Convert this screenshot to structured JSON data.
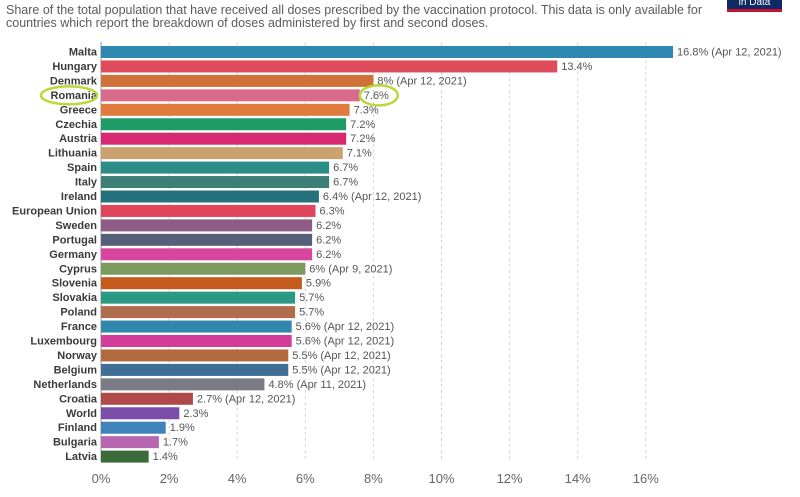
{
  "header": {
    "subtitle": "Share of the total population that have received all doses prescribed by the vaccination protocol. This data is only available for countries which report the breakdown of doses administered by first and second doses.",
    "badge": "in Data"
  },
  "chart_data": {
    "type": "bar",
    "orientation": "horizontal",
    "xlim": [
      0,
      16.8
    ],
    "x_ticks": [
      "0%",
      "2%",
      "4%",
      "6%",
      "8%",
      "10%",
      "12%",
      "14%",
      "16%"
    ],
    "x_tick_values": [
      0,
      2,
      4,
      6,
      8,
      10,
      12,
      14,
      16
    ],
    "grid": "vertical dashed",
    "highlighted": "Romania",
    "highlight_color": "#b9d83a",
    "bars": [
      {
        "category": "Malta",
        "value": 16.8,
        "label": "16.8% (Apr 12, 2021)",
        "color": "#2e88b0"
      },
      {
        "category": "Hungary",
        "value": 13.4,
        "label": "13.4%",
        "color": "#de4c5c"
      },
      {
        "category": "Denmark",
        "value": 8.0,
        "label": "8% (Apr 12, 2021)",
        "color": "#cf7239"
      },
      {
        "category": "Romania",
        "value": 7.6,
        "label": "7.6%",
        "color": "#d86b8c"
      },
      {
        "category": "Greece",
        "value": 7.3,
        "label": "7.3%",
        "color": "#e07a3d"
      },
      {
        "category": "Czechia",
        "value": 7.2,
        "label": "7.2%",
        "color": "#1f9b65"
      },
      {
        "category": "Austria",
        "value": 7.2,
        "label": "7.2%",
        "color": "#d6296f"
      },
      {
        "category": "Lithuania",
        "value": 7.1,
        "label": "7.1%",
        "color": "#c9a26e"
      },
      {
        "category": "Spain",
        "value": 6.7,
        "label": "6.7%",
        "color": "#2c8d88"
      },
      {
        "category": "Italy",
        "value": 6.7,
        "label": "6.7%",
        "color": "#3b7f76"
      },
      {
        "category": "Ireland",
        "value": 6.4,
        "label": "6.4% (Apr 12, 2021)",
        "color": "#24707d"
      },
      {
        "category": "European Union",
        "value": 6.3,
        "label": "6.3%",
        "color": "#e0465a"
      },
      {
        "category": "Sweden",
        "value": 6.2,
        "label": "6.2%",
        "color": "#8f5b87"
      },
      {
        "category": "Portugal",
        "value": 6.2,
        "label": "6.2%",
        "color": "#565f7a"
      },
      {
        "category": "Germany",
        "value": 6.2,
        "label": "6.2%",
        "color": "#d6459e"
      },
      {
        "category": "Cyprus",
        "value": 6.0,
        "label": "6% (Apr 9, 2021)",
        "color": "#7c9a5e"
      },
      {
        "category": "Slovenia",
        "value": 5.9,
        "label": "5.9%",
        "color": "#c55a1e"
      },
      {
        "category": "Slovakia",
        "value": 5.7,
        "label": "5.7%",
        "color": "#2a9a82"
      },
      {
        "category": "Poland",
        "value": 5.7,
        "label": "5.7%",
        "color": "#b06d4d"
      },
      {
        "category": "France",
        "value": 5.6,
        "label": "5.6% (Apr 12, 2021)",
        "color": "#3088ad"
      },
      {
        "category": "Luxembourg",
        "value": 5.6,
        "label": "5.6% (Apr 12, 2021)",
        "color": "#d43c9a"
      },
      {
        "category": "Norway",
        "value": 5.5,
        "label": "5.5% (Apr 12, 2021)",
        "color": "#b36a3e"
      },
      {
        "category": "Belgium",
        "value": 5.5,
        "label": "5.5% (Apr 12, 2021)",
        "color": "#3f6f96"
      },
      {
        "category": "Netherlands",
        "value": 4.8,
        "label": "4.8% (Apr 11, 2021)",
        "color": "#7b7b85"
      },
      {
        "category": "Croatia",
        "value": 2.7,
        "label": "2.7% (Apr 12, 2021)",
        "color": "#b04a4a"
      },
      {
        "category": "World",
        "value": 2.3,
        "label": "2.3%",
        "color": "#7a4ea8"
      },
      {
        "category": "Finland",
        "value": 1.9,
        "label": "1.9%",
        "color": "#3f83b8"
      },
      {
        "category": "Bulgaria",
        "value": 1.7,
        "label": "1.7%",
        "color": "#b766b0"
      },
      {
        "category": "Latvia",
        "value": 1.4,
        "label": "1.4%",
        "color": "#3c6b3a"
      }
    ]
  }
}
